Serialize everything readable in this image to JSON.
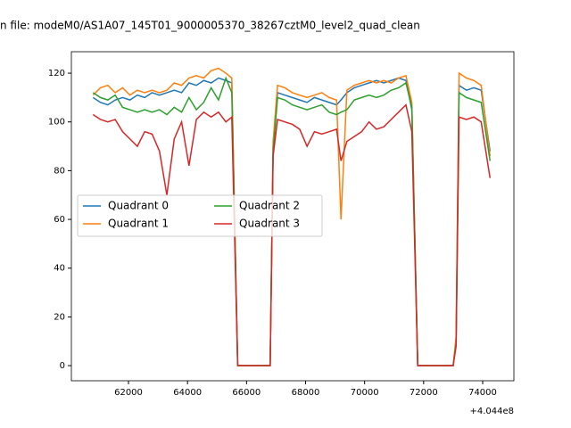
{
  "chart_data": {
    "type": "line",
    "title": "n file: modeM0/AS1A07_145T01_9000005370_38267cztM0_level2_quad_clean",
    "x_offset_text": "+4.044e8",
    "x": [
      60800,
      61050,
      61300,
      61550,
      61800,
      62050,
      62300,
      62550,
      62800,
      63050,
      63300,
      63550,
      63800,
      64050,
      64300,
      64550,
      64800,
      65050,
      65300,
      65500,
      65700,
      66800,
      66900,
      67050,
      67300,
      67550,
      67800,
      68050,
      68300,
      68550,
      68800,
      69050,
      69200,
      69400,
      69650,
      69900,
      70150,
      70400,
      70650,
      70900,
      71150,
      71400,
      71600,
      71800,
      73000,
      73100,
      73200,
      73450,
      73700,
      73950,
      74250
    ],
    "series": [
      {
        "name": "Quadrant 0",
        "color": "#1f77b4",
        "values": [
          110,
          108,
          107,
          109,
          110,
          109,
          111,
          110,
          112,
          111,
          112,
          113,
          112,
          116,
          115,
          117,
          116,
          118,
          117,
          116,
          0,
          0,
          90,
          112,
          111,
          110,
          109,
          108,
          110,
          109,
          108,
          107,
          109,
          112,
          114,
          115,
          116,
          117,
          116,
          117,
          118,
          117,
          105,
          0,
          0,
          10,
          115,
          113,
          114,
          113,
          88
        ]
      },
      {
        "name": "Quadrant 1",
        "color": "#ff7f0e",
        "values": [
          111,
          114,
          115,
          112,
          114,
          111,
          113,
          112,
          113,
          112,
          113,
          116,
          115,
          118,
          119,
          118,
          121,
          122,
          120,
          118,
          0,
          0,
          92,
          115,
          114,
          112,
          111,
          110,
          111,
          112,
          110,
          109,
          60,
          113,
          115,
          116,
          117,
          116,
          117,
          116,
          118,
          119,
          108,
          0,
          0,
          12,
          120,
          118,
          117,
          115,
          86
        ]
      },
      {
        "name": "Quadrant 2",
        "color": "#2ca02c",
        "values": [
          112,
          110,
          109,
          111,
          106,
          105,
          104,
          105,
          104,
          105,
          103,
          106,
          104,
          110,
          105,
          108,
          114,
          109,
          118,
          112,
          0,
          0,
          88,
          110,
          109,
          107,
          106,
          105,
          106,
          107,
          104,
          103,
          104,
          105,
          109,
          110,
          111,
          110,
          111,
          113,
          114,
          116,
          106,
          0,
          0,
          9,
          112,
          110,
          109,
          108,
          84
        ]
      },
      {
        "name": "Quadrant 3",
        "color": "#d62728",
        "values": [
          103,
          101,
          100,
          101,
          96,
          93,
          90,
          96,
          95,
          88,
          70,
          93,
          100,
          82,
          101,
          104,
          102,
          104,
          100,
          102,
          0,
          0,
          86,
          101,
          100,
          99,
          97,
          90,
          96,
          95,
          96,
          97,
          84,
          92,
          94,
          96,
          100,
          97,
          98,
          101,
          104,
          107,
          96,
          0,
          0,
          8,
          102,
          101,
          102,
          100,
          77
        ]
      }
    ],
    "xlim": [
      60065,
      75058
    ],
    "ylim": [
      -6.2,
      128.8
    ],
    "xticks": [
      62000,
      64000,
      66000,
      68000,
      70000,
      72000,
      74000
    ],
    "yticks": [
      0,
      20,
      40,
      60,
      80,
      100,
      120
    ],
    "legend_loc": "center left",
    "legend_columns": 2
  }
}
